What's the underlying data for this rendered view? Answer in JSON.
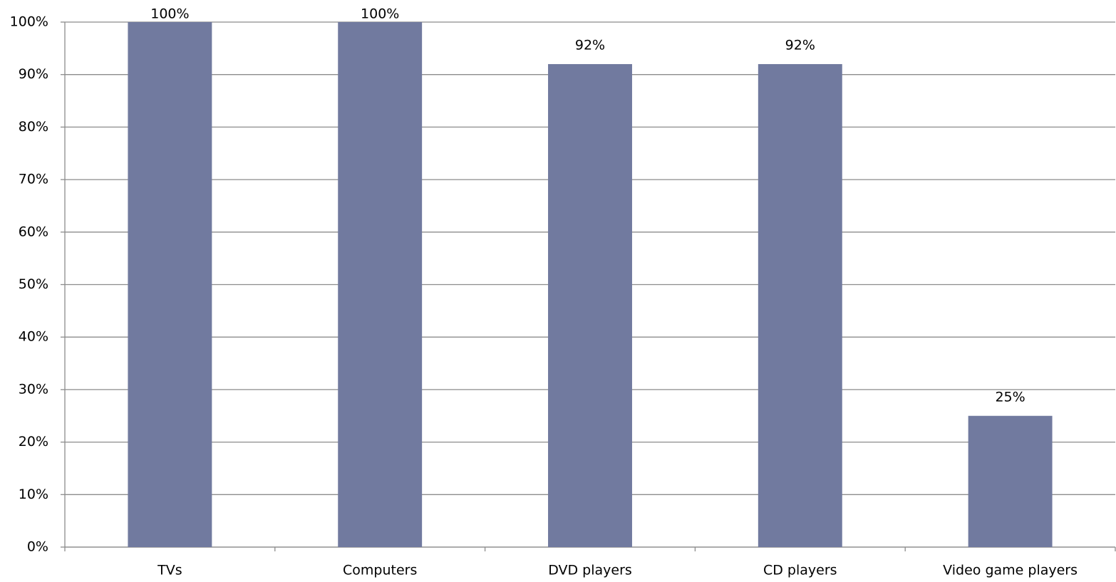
{
  "chart_data": {
    "type": "bar",
    "categories": [
      "TVs",
      "Computers",
      "DVD players",
      "CD players",
      "Video game players"
    ],
    "values": [
      100,
      100,
      92,
      92,
      25
    ],
    "value_labels": [
      "100%",
      "100%",
      "92%",
      "92%",
      "25%"
    ],
    "color": "#717a9f",
    "ylim": [
      0,
      100
    ],
    "yticks": [
      {
        "value": 0,
        "label": "0%"
      },
      {
        "value": 10,
        "label": "10%"
      },
      {
        "value": 20,
        "label": "20%"
      },
      {
        "value": 30,
        "label": "30%"
      },
      {
        "value": 40,
        "label": "40%"
      },
      {
        "value": 50,
        "label": "50%"
      },
      {
        "value": 60,
        "label": "60%"
      },
      {
        "value": 70,
        "label": "70%"
      },
      {
        "value": 80,
        "label": "80%"
      },
      {
        "value": 90,
        "label": "90%"
      },
      {
        "value": 100,
        "label": "100%"
      }
    ],
    "grid": true
  }
}
